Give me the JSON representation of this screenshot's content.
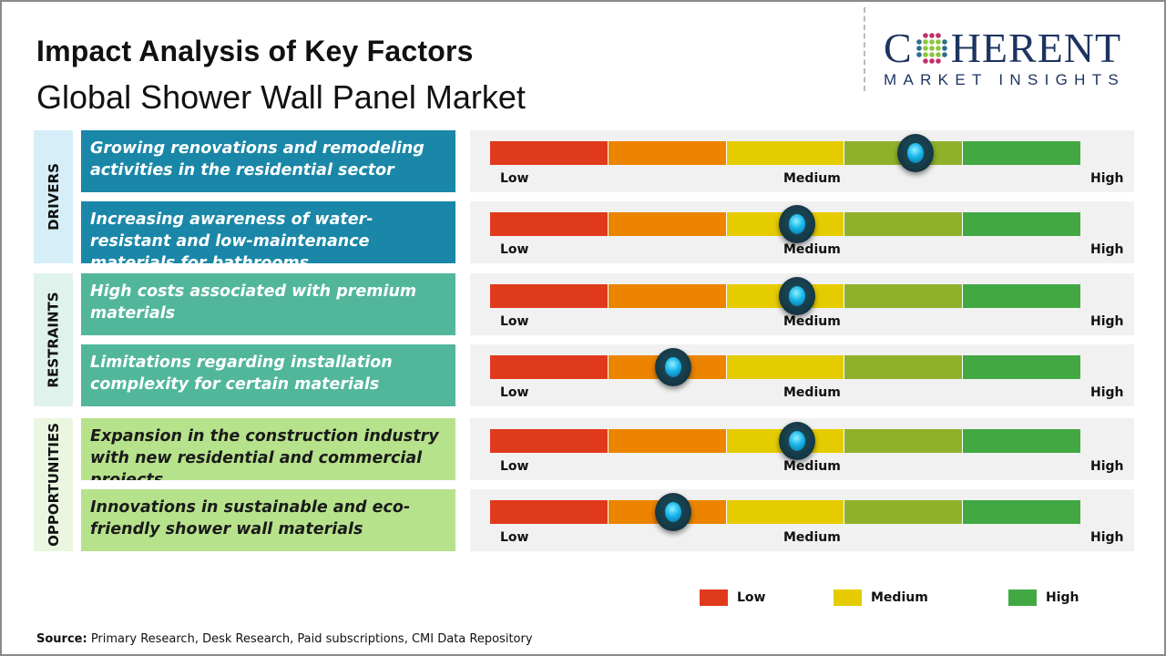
{
  "header": {
    "title": "Impact Analysis of Key Factors",
    "subtitle": "Global Shower Wall Panel Market"
  },
  "logo": {
    "main_left": "C",
    "main_right": "HERENT",
    "sub": "MARKET INSIGHTS"
  },
  "scale_colors": [
    "#e03a1c",
    "#ec8400",
    "#e5cc00",
    "#8fb12a",
    "#42a843"
  ],
  "gauge_labels": {
    "low": "Low",
    "medium": "Medium",
    "high": "High"
  },
  "groups": [
    {
      "label": "DRIVERS",
      "box_color": "#1a87a8",
      "side_color": "#d5eef8"
    },
    {
      "label": "RESTRAINTS",
      "box_color": "#52b79a",
      "side_color": "#dff2ec"
    },
    {
      "label": "OPPORTUNITIES",
      "box_color": "#b7e28c",
      "side_color": "#eaf6df"
    }
  ],
  "factors": [
    {
      "group": "DRIVERS",
      "text": "Growing renovations and remodeling activities in the residential sector",
      "impact": 0.72
    },
    {
      "group": "DRIVERS",
      "text": "Increasing awareness of water-resistant and low-maintenance materials for bathrooms",
      "impact": 0.52
    },
    {
      "group": "RESTRAINTS",
      "text": "High costs associated with premium materials",
      "impact": 0.52
    },
    {
      "group": "RESTRAINTS",
      "text": "Limitations regarding installation complexity for certain materials",
      "impact": 0.31
    },
    {
      "group": "OPPORTUNITIES",
      "text": "Expansion in the construction industry with new residential and commercial projects",
      "impact": 0.52
    },
    {
      "group": "OPPORTUNITIES",
      "text": "Innovations in sustainable and eco-friendly shower wall materials",
      "impact": 0.31
    }
  ],
  "legend": [
    {
      "label": "Low",
      "color": "#e03a1c"
    },
    {
      "label": "Medium",
      "color": "#e5cc00"
    },
    {
      "label": "High",
      "color": "#42a843"
    }
  ],
  "source": {
    "label": "Source:",
    "text": " Primary Research, Desk Research, Paid subscriptions, CMI Data Repository"
  }
}
